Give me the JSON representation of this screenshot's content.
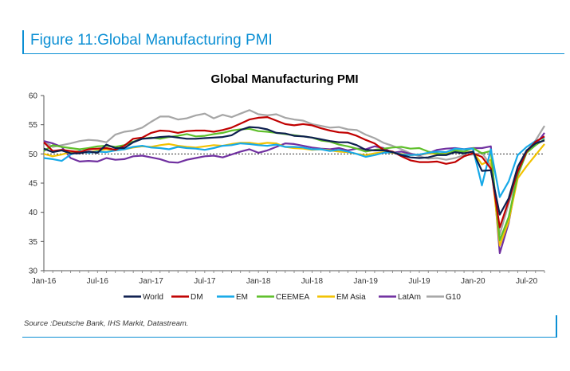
{
  "figure": {
    "title": "Figure 11:Global Manufacturing PMI",
    "source": "Source :Deutsche Bank, IHS Markit, Datastream."
  },
  "chart_data": {
    "type": "line",
    "title": "Global Manufacturing PMI",
    "xlabel": "",
    "ylabel": "",
    "ylim": [
      30,
      60
    ],
    "yticks": [
      30,
      35,
      40,
      45,
      50,
      55,
      60
    ],
    "x_tick_labels": [
      "Jan-16",
      "Jul-16",
      "Jan-17",
      "Jul-17",
      "Jan-18",
      "Jul-18",
      "Jan-19",
      "Jul-19",
      "Jan-20",
      "Jul-20"
    ],
    "x_tick_indices": [
      0,
      6,
      12,
      18,
      24,
      30,
      36,
      42,
      48,
      54
    ],
    "n_months": 57,
    "reference_line": 50,
    "legend_position": "bottom",
    "series": [
      {
        "name": "World",
        "color": "#0d1f4f",
        "values": [
          50.9,
          50.3,
          50.6,
          50.1,
          50.1,
          50.4,
          50.2,
          51.6,
          51.0,
          51.0,
          52.0,
          52.6,
          52.7,
          52.9,
          53.0,
          52.8,
          52.6,
          52.6,
          52.7,
          52.8,
          52.9,
          53.2,
          54.1,
          54.6,
          54.5,
          54.2,
          53.6,
          53.5,
          53.1,
          53.0,
          52.8,
          52.5,
          52.2,
          52.0,
          52.0,
          51.5,
          50.7,
          50.6,
          50.6,
          50.3,
          49.8,
          49.4,
          49.3,
          49.4,
          49.8,
          49.8,
          50.3,
          50.1,
          50.4,
          47.1,
          47.2,
          39.6,
          42.4,
          47.8,
          50.6,
          51.8,
          52.3
        ]
      },
      {
        "name": "DM",
        "color": "#c00000",
        "values": [
          52.0,
          50.5,
          50.7,
          50.5,
          50.3,
          50.8,
          50.9,
          51.0,
          50.7,
          51.4,
          52.6,
          52.8,
          53.6,
          54.0,
          53.9,
          53.6,
          53.9,
          54.0,
          54.0,
          53.8,
          54.1,
          54.5,
          55.2,
          55.9,
          56.2,
          56.3,
          55.7,
          55.1,
          54.9,
          55.1,
          54.9,
          54.4,
          54.0,
          53.7,
          53.6,
          53.1,
          52.4,
          51.8,
          50.7,
          50.4,
          49.6,
          48.9,
          48.6,
          48.6,
          48.7,
          48.3,
          48.6,
          49.6,
          50.1,
          49.5,
          47.5,
          37.4,
          42.0,
          47.0,
          50.4,
          52.1,
          53.0
        ]
      },
      {
        "name": "EM",
        "color": "#17a9e8",
        "values": [
          49.3,
          49.1,
          48.8,
          49.9,
          50.5,
          50.2,
          50.4,
          50.3,
          50.6,
          50.8,
          51.2,
          51.4,
          51.1,
          51.0,
          50.8,
          51.2,
          51.0,
          50.9,
          50.7,
          51.0,
          51.4,
          51.5,
          51.8,
          51.7,
          51.5,
          51.4,
          51.6,
          51.2,
          51.2,
          51.1,
          50.8,
          50.8,
          50.5,
          50.7,
          50.4,
          50.0,
          49.5,
          49.8,
          50.2,
          50.3,
          49.9,
          49.8,
          49.9,
          50.2,
          50.4,
          50.3,
          50.9,
          50.8,
          50.9,
          44.6,
          50.8,
          42.6,
          45.3,
          49.8,
          51.2,
          52.2,
          52.8
        ]
      },
      {
        "name": "CEEMEA",
        "color": "#5ebf2a",
        "values": [
          50.5,
          51.5,
          51.2,
          51.0,
          50.8,
          51.0,
          51.3,
          51.4,
          51.2,
          51.5,
          52.1,
          52.6,
          52.8,
          52.6,
          52.9,
          53.1,
          53.4,
          53.0,
          53.1,
          53.4,
          53.6,
          54.0,
          54.2,
          54.3,
          53.9,
          53.8,
          53.6,
          53.4,
          53.2,
          53.0,
          52.8,
          52.3,
          52.1,
          51.6,
          51.3,
          50.9,
          50.4,
          50.7,
          50.9,
          51.1,
          51.2,
          50.9,
          51.0,
          50.4,
          50.1,
          49.9,
          50.6,
          50.4,
          51.0,
          50.1,
          50.5,
          35.2,
          39.2,
          46.4,
          50.2,
          51.5,
          52.5
        ]
      },
      {
        "name": "EM Asia",
        "color": "#f2c200",
        "values": [
          50.0,
          49.6,
          49.9,
          50.3,
          50.5,
          50.2,
          50.6,
          50.8,
          50.6,
          50.8,
          51.1,
          51.3,
          51.2,
          51.5,
          51.7,
          51.4,
          51.2,
          51.1,
          51.3,
          51.5,
          51.4,
          51.7,
          51.9,
          51.9,
          51.7,
          51.9,
          51.8,
          51.2,
          51.0,
          50.9,
          50.7,
          50.8,
          50.6,
          50.4,
          50.3,
          50.0,
          49.8,
          50.1,
          50.3,
          50.2,
          50.0,
          49.8,
          49.9,
          50.1,
          50.0,
          50.1,
          50.3,
          50.2,
          50.4,
          48.2,
          49.0,
          34.3,
          38.5,
          45.8,
          47.9,
          49.8,
          51.7
        ]
      },
      {
        "name": "LatAm",
        "color": "#7030a0",
        "values": [
          52.2,
          51.8,
          51.2,
          49.3,
          48.7,
          48.8,
          48.7,
          49.3,
          49.0,
          49.1,
          49.6,
          49.7,
          49.4,
          49.1,
          48.6,
          48.5,
          49.0,
          49.3,
          49.6,
          49.7,
          49.4,
          49.9,
          50.4,
          50.8,
          50.2,
          50.6,
          51.2,
          51.8,
          51.7,
          51.4,
          51.1,
          50.9,
          50.8,
          51.0,
          50.6,
          50.9,
          50.8,
          51.3,
          51.0,
          50.2,
          50.4,
          50.0,
          49.8,
          50.1,
          50.7,
          50.9,
          51.0,
          50.8,
          51.0,
          51.0,
          51.3,
          33.0,
          38.2,
          46.6,
          50.3,
          51.5,
          53.6
        ]
      },
      {
        "name": "G10",
        "color": "#a6a6a6",
        "values": [
          52.1,
          51.2,
          51.5,
          51.8,
          52.2,
          52.4,
          52.3,
          52.0,
          53.3,
          53.8,
          54.0,
          54.5,
          55.5,
          56.4,
          56.4,
          55.9,
          56.1,
          56.6,
          56.9,
          56.1,
          56.7,
          56.3,
          56.9,
          57.5,
          56.8,
          56.6,
          56.8,
          56.2,
          55.9,
          55.7,
          55.1,
          54.8,
          54.5,
          54.6,
          54.2,
          54.1,
          53.3,
          52.7,
          51.9,
          51.4,
          50.8,
          50.1,
          49.6,
          49.2,
          49.3,
          49.0,
          49.3,
          49.8,
          49.9,
          50.2,
          48.0,
          36.2,
          41.5,
          46.2,
          50.5,
          52.3,
          54.8
        ]
      }
    ]
  }
}
